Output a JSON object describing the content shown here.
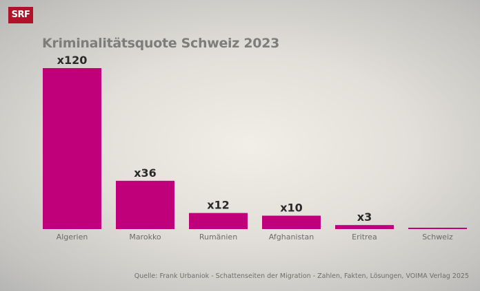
{
  "logo": "SRF",
  "source": "Quelle: Frank Urbaniok - Schattenseiten der Migration - Zahlen, Fakten, Lösungen, VOIMA Verlag 2025",
  "colors": {
    "bar": "#c0007a",
    "logo": "#b0122a"
  },
  "chart_data": {
    "type": "bar",
    "title": "Kriminalitätsquote Schweiz 2023",
    "categories": [
      "Algerien",
      "Marokko",
      "Rumänien",
      "Afghanistan",
      "Eritrea",
      "Schweiz"
    ],
    "values": [
      120,
      36,
      12,
      10,
      3,
      1
    ],
    "data_labels": [
      "x120",
      "x36",
      "x12",
      "x10",
      "x3",
      ""
    ],
    "xlabel": "",
    "ylabel": "",
    "ylim": [
      0,
      120
    ],
    "grid": false
  }
}
